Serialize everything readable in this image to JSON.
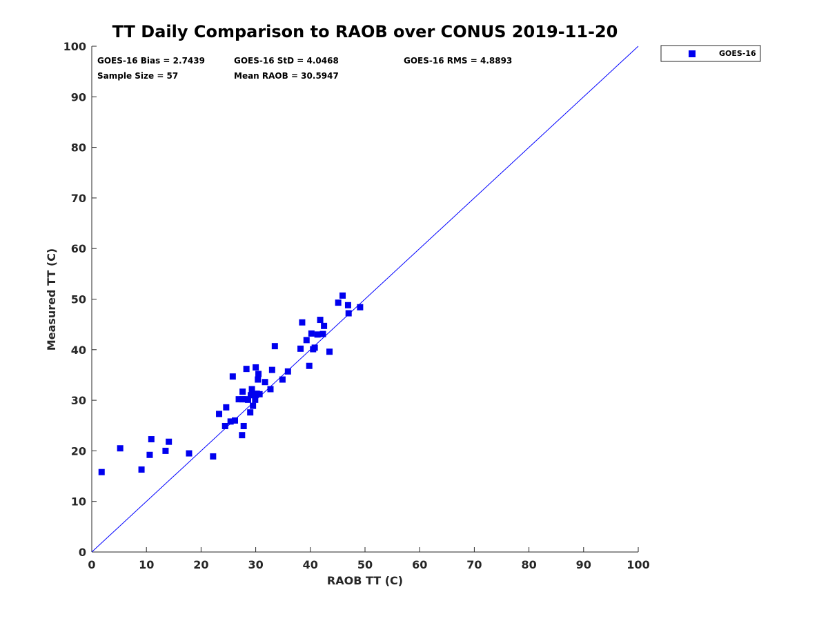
{
  "chart_data": {
    "type": "scatter",
    "title": "TT Daily Comparison to RAOB over CONUS 2019-11-20",
    "xlabel": "RAOB TT (C)",
    "ylabel": "Measured TT (C)",
    "xlim": [
      0,
      100
    ],
    "ylim": [
      0,
      100
    ],
    "xticks": [
      0,
      10,
      20,
      30,
      40,
      50,
      60,
      70,
      80,
      90,
      100
    ],
    "yticks": [
      0,
      10,
      20,
      30,
      40,
      50,
      60,
      70,
      80,
      90,
      100
    ],
    "grid": false,
    "legend_position": "top-right",
    "reference_line": {
      "name": "1:1 line",
      "x": [
        0,
        100
      ],
      "y": [
        0,
        100
      ],
      "color": "#0000ff"
    },
    "stats": [
      {
        "label": "GOES-16 Bias = 2.7439"
      },
      {
        "label": "GOES-16 StD = 4.0468"
      },
      {
        "label": "GOES-16 RMS = 4.8893"
      },
      {
        "label": "Sample Size = 57"
      },
      {
        "label": "Mean RAOB = 30.5947"
      }
    ],
    "series": [
      {
        "name": "GOES-16",
        "color": "#0000ee",
        "marker": "square",
        "x": [
          1.8,
          5.2,
          9.1,
          10.6,
          10.9,
          13.5,
          14.1,
          17.8,
          22.2,
          23.3,
          24.4,
          24.6,
          25.4,
          25.8,
          26.2,
          26.9,
          27.5,
          27.6,
          27.6,
          27.8,
          28.1,
          28.3,
          28.6,
          29.0,
          29.1,
          29.3,
          29.5,
          29.7,
          29.9,
          30.0,
          30.2,
          30.4,
          30.5,
          30.7,
          31.7,
          32.7,
          33.0,
          33.5,
          34.9,
          35.9,
          38.2,
          38.5,
          39.3,
          39.8,
          40.2,
          40.5,
          40.8,
          41.3,
          41.8,
          42.3,
          42.5,
          43.5,
          45.1,
          45.9,
          46.9,
          47.0,
          49.1
        ],
        "y": [
          15.8,
          20.5,
          16.3,
          19.2,
          22.3,
          20.0,
          21.8,
          19.5,
          18.9,
          27.3,
          24.9,
          28.6,
          25.8,
          34.7,
          26.0,
          30.2,
          23.1,
          30.2,
          31.7,
          24.9,
          30.2,
          36.2,
          30.1,
          27.6,
          31.0,
          32.2,
          28.9,
          31.1,
          30.1,
          36.5,
          31.3,
          34.1,
          35.2,
          31.2,
          33.6,
          32.2,
          36.0,
          40.7,
          34.1,
          35.7,
          40.2,
          45.4,
          41.9,
          36.8,
          43.2,
          40.1,
          40.4,
          43.0,
          45.9,
          43.1,
          44.7,
          39.6,
          49.3,
          50.7,
          48.8,
          47.2,
          48.4
        ]
      }
    ]
  }
}
